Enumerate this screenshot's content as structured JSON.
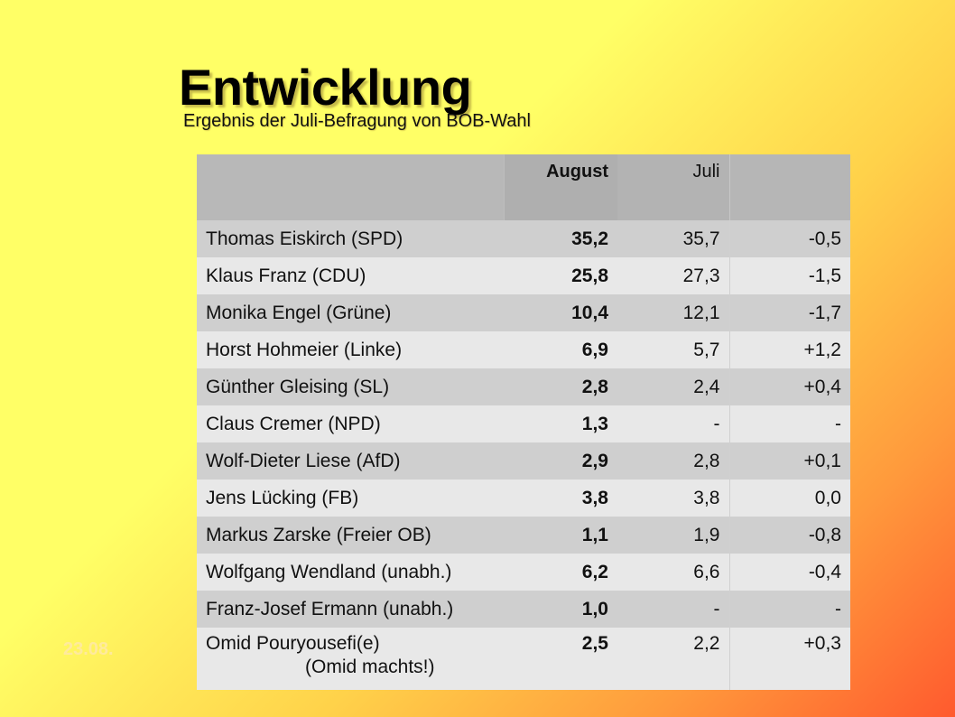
{
  "slide": {
    "title": "Entwicklung",
    "subtitle": "Ergebnis der Juli-Befragung von BOB-Wahl",
    "date": "23.08."
  },
  "table": {
    "headers": {
      "name": "",
      "august": "August",
      "juli": "Juli",
      "diff": ""
    },
    "rows": [
      {
        "name": "Thomas Eiskirch (SPD)",
        "august": "35,2",
        "juli": "35,7",
        "diff": "-0,5"
      },
      {
        "name": "Klaus Franz (CDU)",
        "august": "25,8",
        "juli": "27,3",
        "diff": "-1,5"
      },
      {
        "name": "Monika Engel (Grüne)",
        "august": "10,4",
        "juli": "12,1",
        "diff": "-1,7"
      },
      {
        "name": "Horst Hohmeier (Linke)",
        "august": "6,9",
        "juli": "5,7",
        "diff": "+1,2"
      },
      {
        "name": "Günther Gleising (SL)",
        "august": "2,8",
        "juli": "2,4",
        "diff": "+0,4"
      },
      {
        "name": "Claus Cremer (NPD)",
        "august": "1,3",
        "juli": "-",
        "diff": "-"
      },
      {
        "name": "Wolf-Dieter Liese (AfD)",
        "august": "2,9",
        "juli": "2,8",
        "diff": "+0,1"
      },
      {
        "name": "Jens Lücking (FB)",
        "august": "3,8",
        "juli": "3,8",
        "diff": "0,0"
      },
      {
        "name": "Markus Zarske (Freier OB)",
        "august": "1,1",
        "juli": "1,9",
        "diff": "-0,8"
      },
      {
        "name": "Wolfgang Wendland (unabh.)",
        "august": "6,2",
        "juli": "6,6",
        "diff": "-0,4"
      },
      {
        "name": "Franz-Josef Ermann (unabh.)",
        "august": "1,0",
        "juli": "-",
        "diff": "-"
      },
      {
        "name": "Omid Pouryousefi(e)",
        "note": "(Omid machts!)",
        "august": "2,5",
        "juli": "2,2",
        "diff": "+0,3"
      }
    ]
  },
  "colors": {
    "background_top": "#ffff66",
    "background_bottom_right": "#ff5a2e",
    "header_gray": "#b4b4b4",
    "row_dark": "#cfcfcf",
    "row_light": "#e8e8e8"
  }
}
